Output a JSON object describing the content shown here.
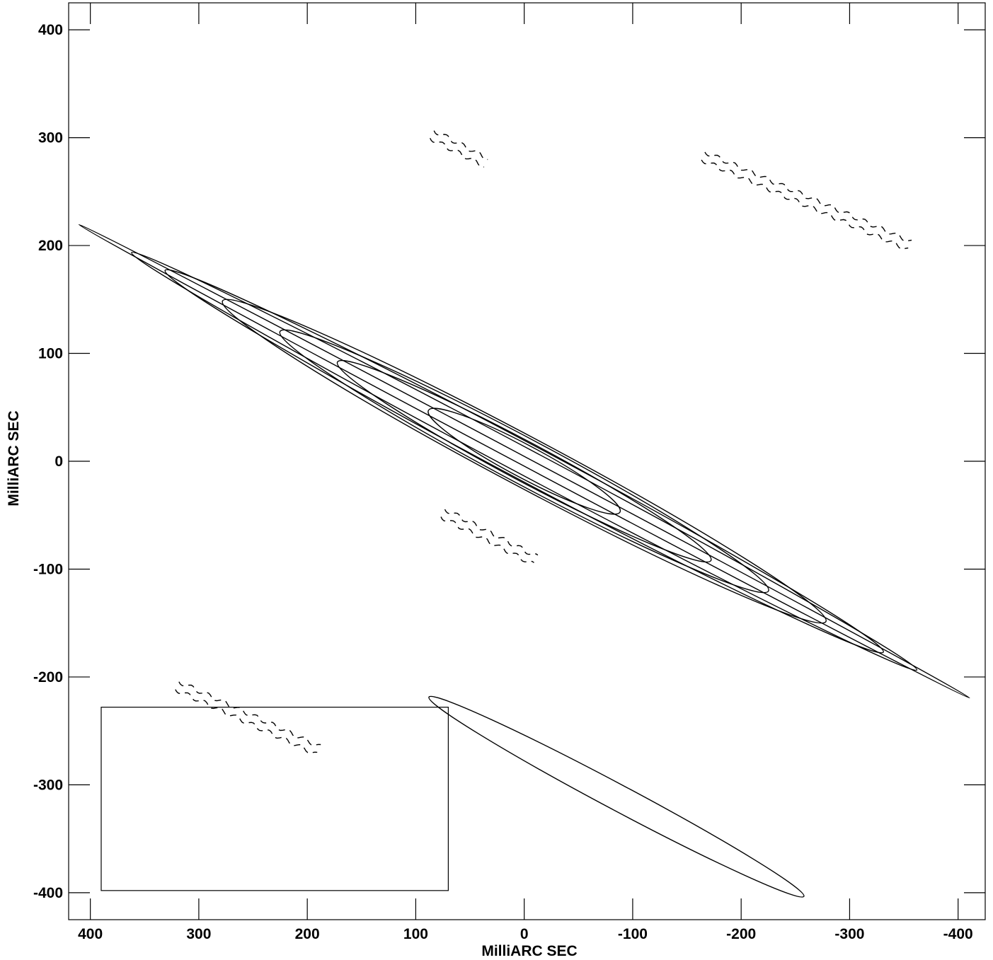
{
  "chart_data": {
    "type": "contour",
    "xlabel": "MilliARC SEC",
    "ylabel": "MilliARC SEC",
    "xlim": [
      420,
      -425
    ],
    "ylim": [
      -425,
      425
    ],
    "x_ticks": [
      400,
      300,
      200,
      100,
      0,
      -100,
      -200,
      -300,
      -400
    ],
    "y_ticks": [
      400,
      300,
      200,
      100,
      0,
      -100,
      -200,
      -300,
      -400
    ],
    "x_tick_labels": [
      "400",
      "300",
      "200",
      "100",
      "0",
      "-100",
      "-200",
      "-300",
      "-400"
    ],
    "y_tick_labels": [
      "400",
      "300",
      "200",
      "100",
      "0",
      "-100",
      "-200",
      "-300",
      "-400"
    ],
    "central_source": {
      "center": [
        0,
        0
      ],
      "position_angle_deg": 62,
      "contours": [
        {
          "level": 1,
          "major_halfwidth": 465,
          "minor_halfwidth": 4
        },
        {
          "level": 2,
          "major_halfwidth": 410,
          "minor_halfwidth": 12
        },
        {
          "level": 3,
          "major_halfwidth": 375,
          "minor_halfwidth": 17
        },
        {
          "level": 4,
          "major_halfwidth": 315,
          "minor_halfwidth": 23
        },
        {
          "level": 5,
          "major_halfwidth": 255,
          "minor_halfwidth": 21
        },
        {
          "level": 6,
          "major_halfwidth": 195,
          "minor_halfwidth": 18
        },
        {
          "level": 7,
          "major_halfwidth": 100,
          "minor_halfwidth": 15
        }
      ]
    },
    "sidelobe_patches": [
      {
        "from": [
          85,
          303
        ],
        "to": [
          35,
          277
        ]
      },
      {
        "from": [
          -165,
          283
        ],
        "to": [
          -355,
          200
        ]
      },
      {
        "from": [
          75,
          -48
        ],
        "to": [
          -10,
          -92
        ]
      },
      {
        "from": [
          320,
          -208
        ],
        "to": [
          190,
          -268
        ]
      }
    ],
    "beam": {
      "center": [
        -85,
        -311
      ],
      "major": 290,
      "minor": 24,
      "box": {
        "x": [
          390,
          70
        ],
        "y": [
          -228,
          -398
        ]
      }
    }
  }
}
